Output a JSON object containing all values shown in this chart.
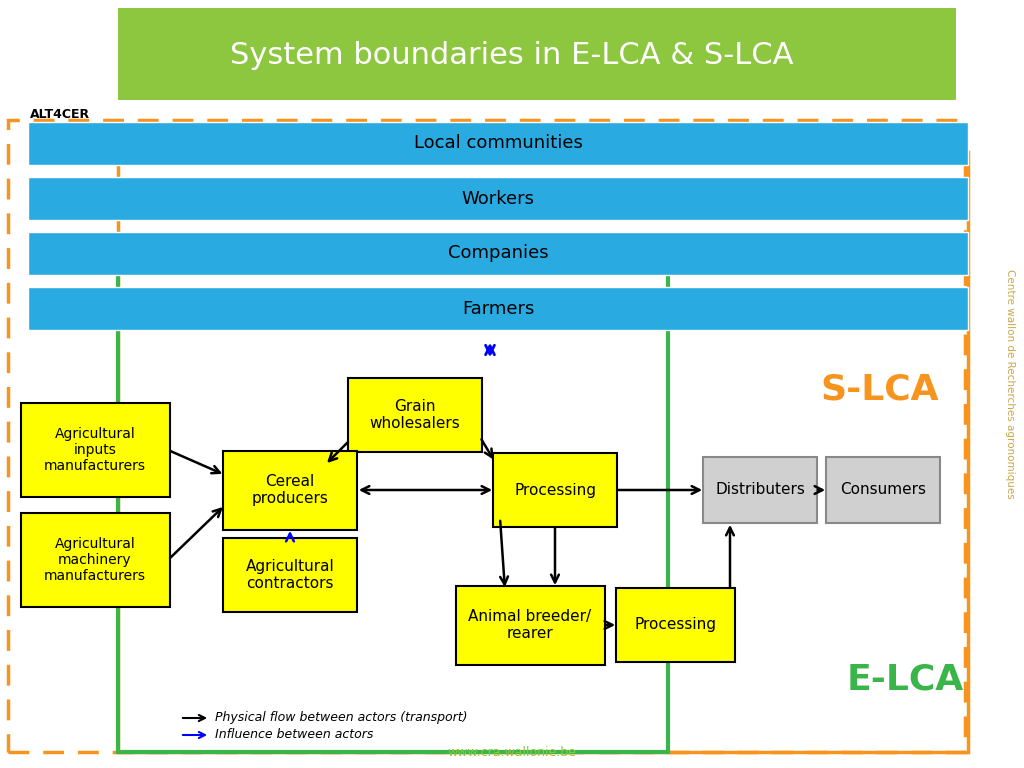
{
  "title": "System boundaries in E-LCA & S-LCA",
  "bg_color": "#ffffff",
  "header_color": "#8dc63f",
  "title_color": "#ffffff",
  "cyan_color": "#29abe2",
  "yellow_color": "#ffff00",
  "gray_color": "#d0d0d0",
  "orange_color": "#f7941d",
  "green_color": "#39b54a",
  "slca_color": "#f7941d",
  "elca_color": "#39b54a",
  "side_text_color": "#c8a84b",
  "website_color": "#8dc63f",
  "cyan_labels": [
    "Local communities",
    "Workers",
    "Companies",
    "Farmers"
  ],
  "website": "www.cra.wallonie.be",
  "alt4cer": "ALT4CER",
  "side_text": "Centre wallon de Recherches agronomiques",
  "slca_label": "S-LCA",
  "elca_label": "E-LCA"
}
